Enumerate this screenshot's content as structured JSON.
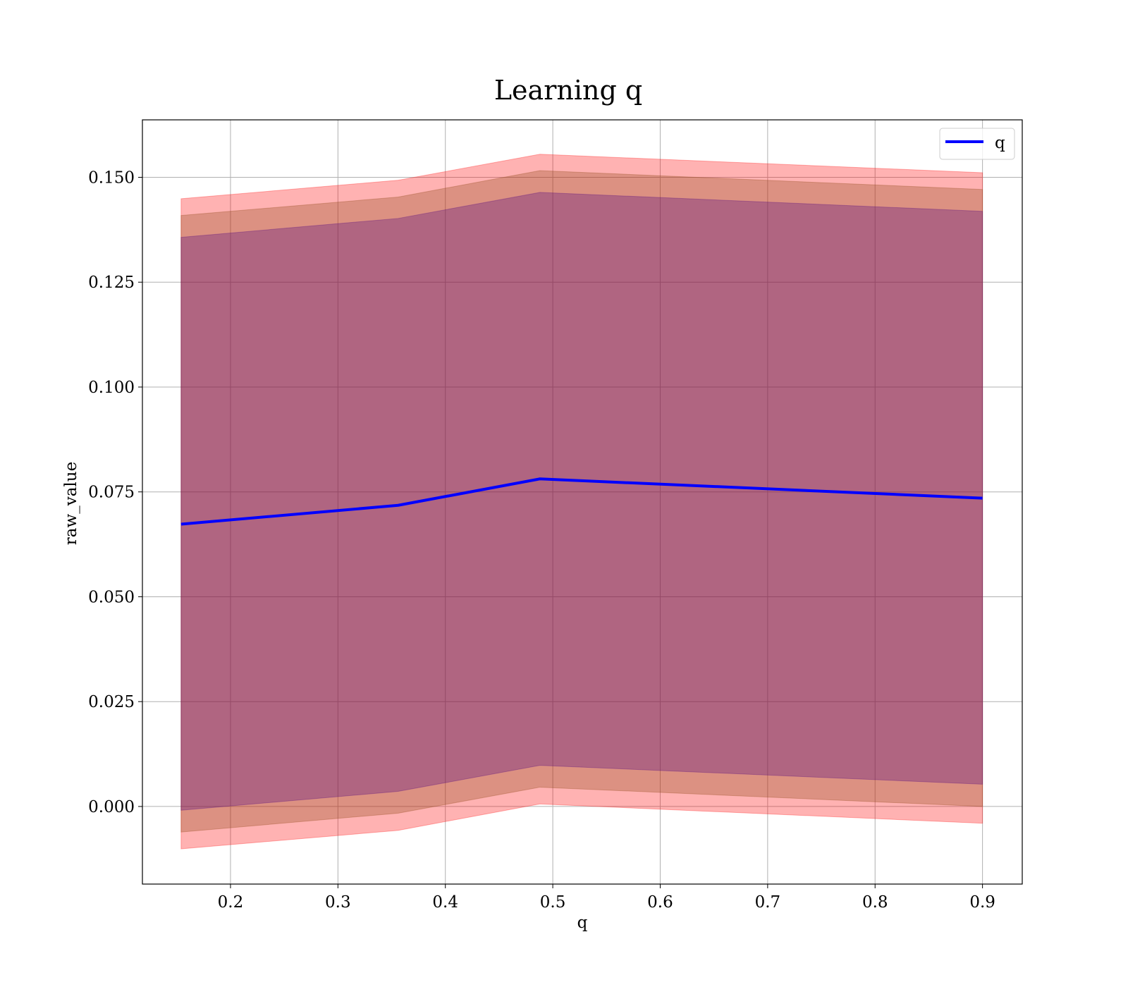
{
  "chart_data": {
    "type": "line",
    "title": "Learning q",
    "xlabel": "q",
    "ylabel": "raw_value",
    "xlim": [
      0.118,
      0.937
    ],
    "ylim": [
      -0.0185,
      0.1637
    ],
    "x_ticks": [
      0.2,
      0.3,
      0.4,
      0.5,
      0.6,
      0.7,
      0.8,
      0.9
    ],
    "x_tick_labels": [
      "0.2",
      "0.3",
      "0.4",
      "0.5",
      "0.6",
      "0.7",
      "0.8",
      "0.9"
    ],
    "y_ticks": [
      0.0,
      0.025,
      0.05,
      0.075,
      0.1,
      0.125,
      0.15
    ],
    "y_tick_labels": [
      "0.000",
      "0.025",
      "0.050",
      "0.075",
      "0.100",
      "0.125",
      "0.150"
    ],
    "grid": true,
    "legend_position": "top-right",
    "x": [
      0.154,
      0.356,
      0.488,
      0.9
    ],
    "series": [
      {
        "name": "q",
        "color": "#0000ff",
        "values": [
          0.0673,
          0.0718,
          0.0781,
          0.0735
        ]
      }
    ],
    "bands": [
      {
        "color": "#ff0000",
        "opacity": 0.3,
        "upper": [
          0.1449,
          0.1493,
          0.1555,
          0.1511
        ],
        "lower": [
          -0.0101,
          -0.0057,
          0.0006,
          -0.004
        ]
      },
      {
        "color": "#8b4513",
        "opacity": 0.3,
        "upper": [
          0.1409,
          0.1453,
          0.1516,
          0.1471
        ],
        "lower": [
          -0.0061,
          -0.0016,
          0.0046,
          0.0
        ]
      },
      {
        "color": "#4b0082",
        "opacity": 0.3,
        "upper": [
          0.1357,
          0.1402,
          0.1464,
          0.1419
        ],
        "lower": [
          -0.0009,
          0.0036,
          0.0098,
          0.0053
        ]
      }
    ]
  }
}
